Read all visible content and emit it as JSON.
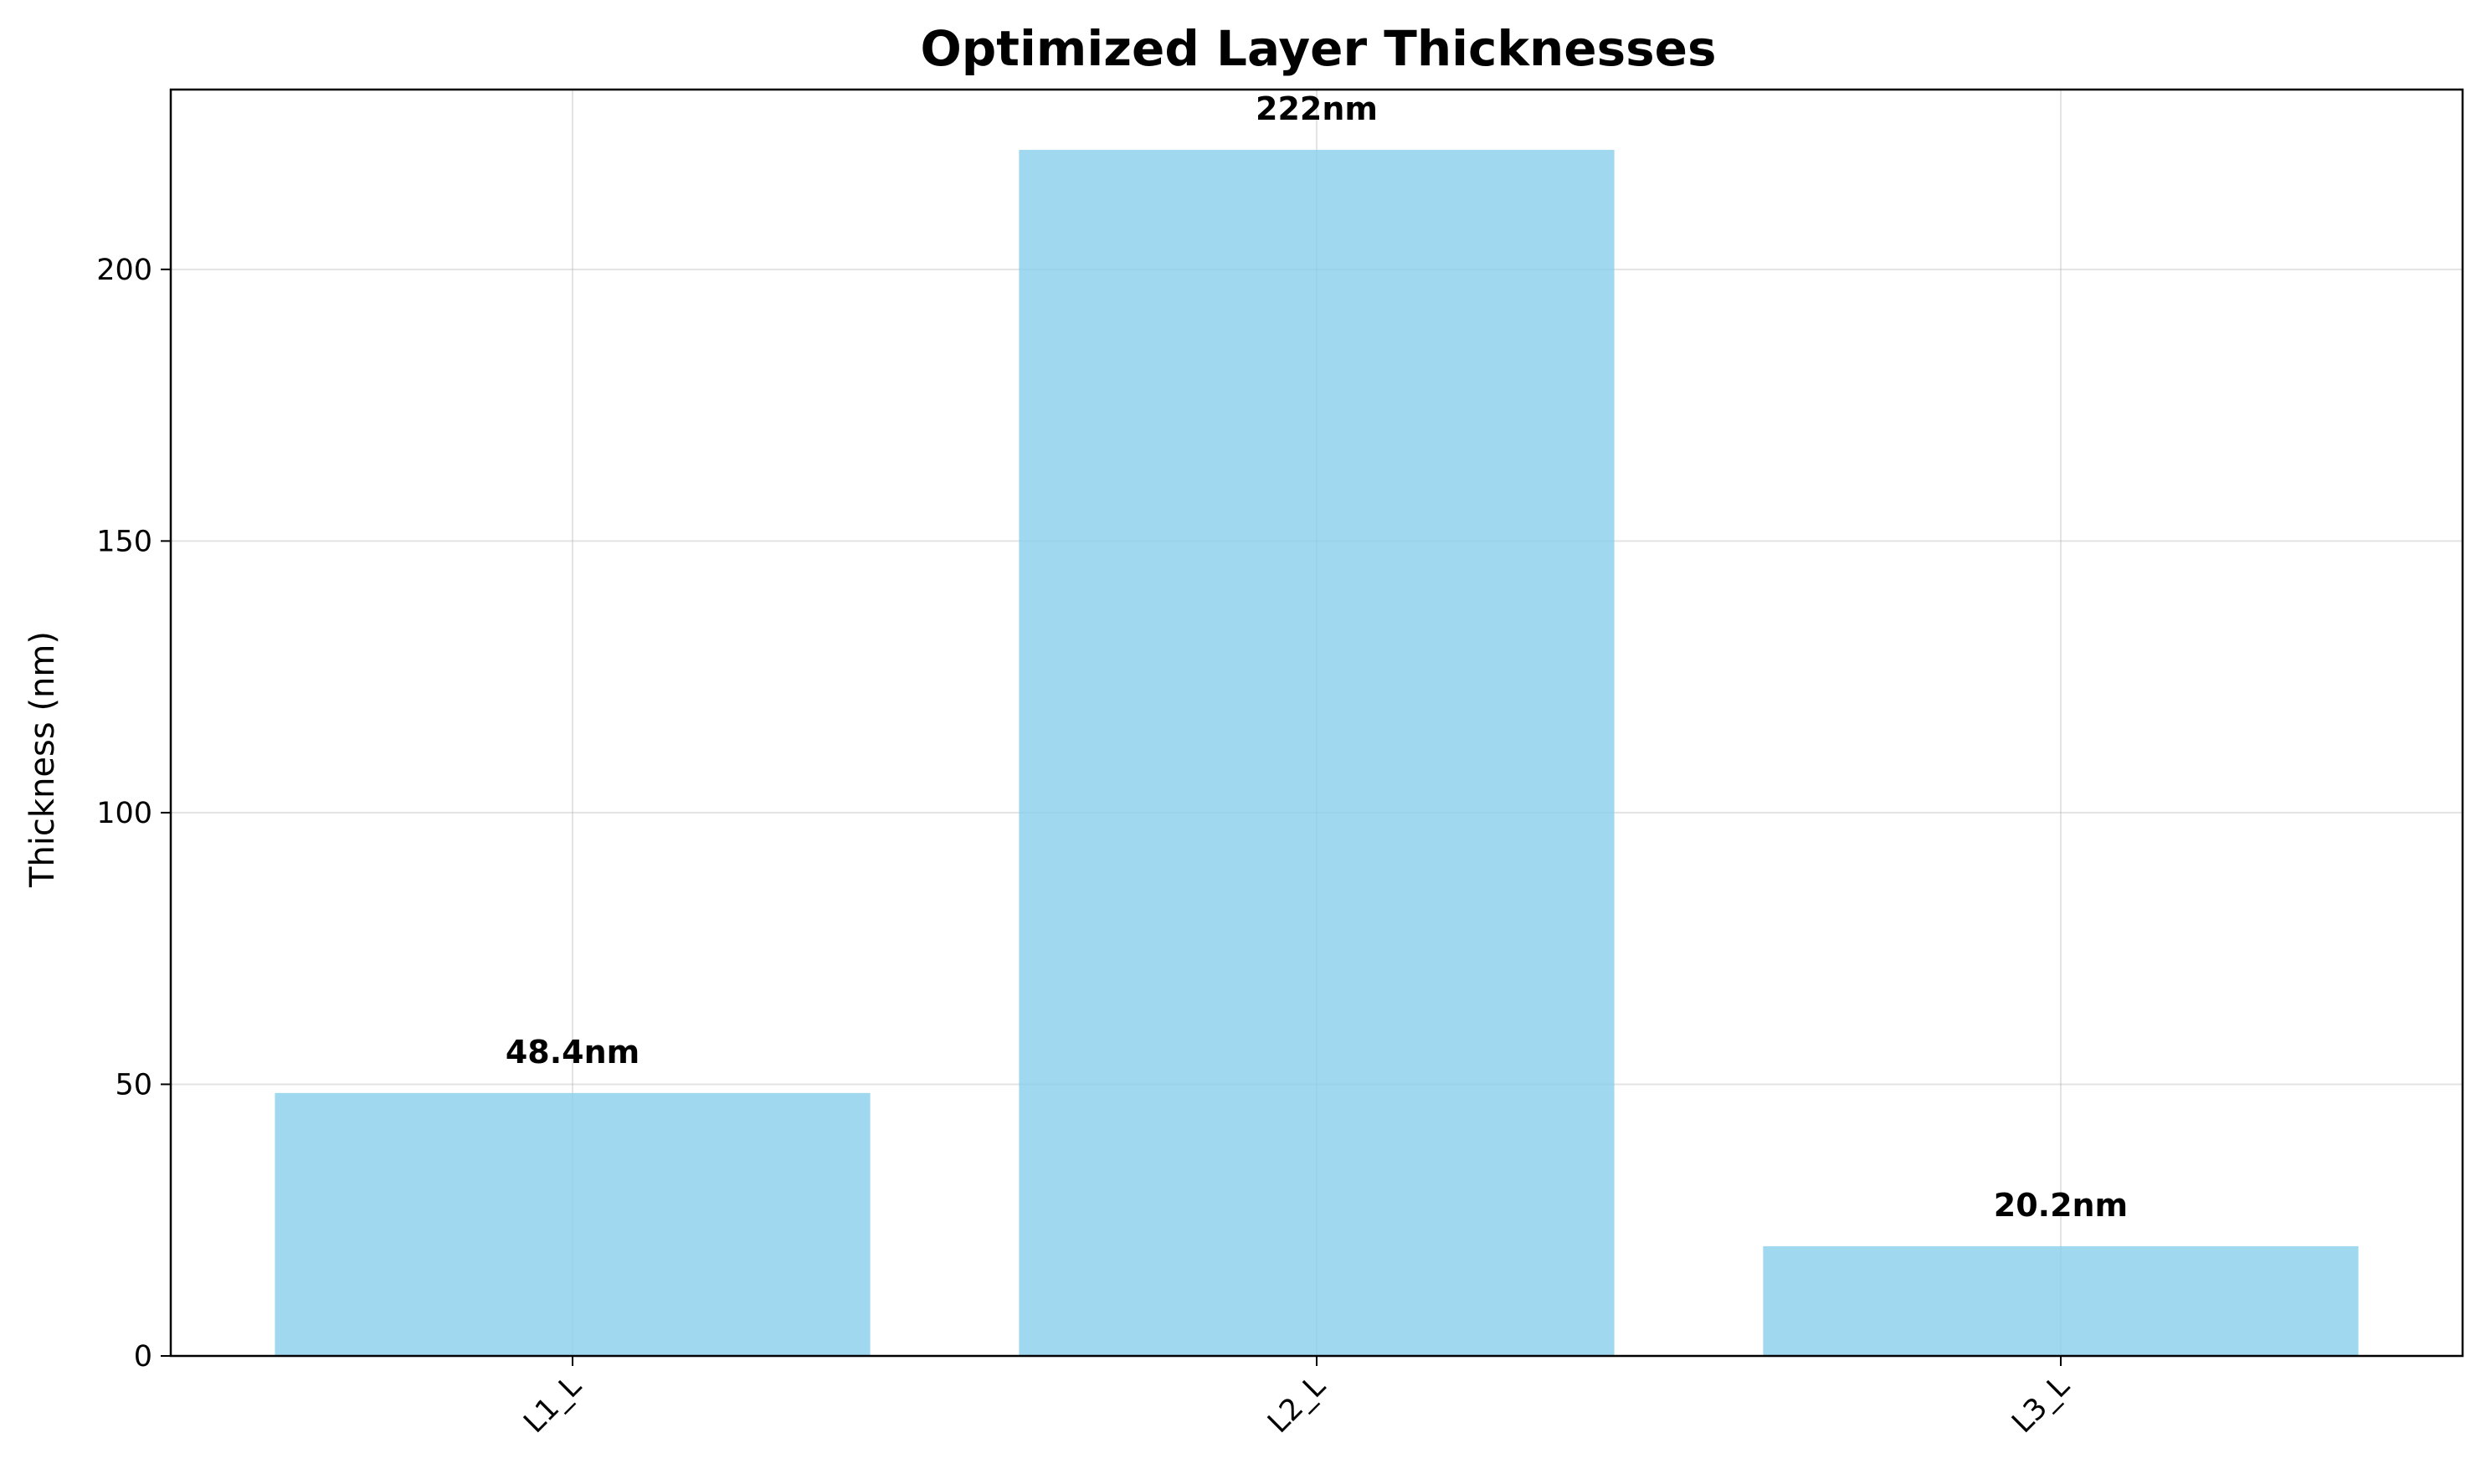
{
  "chart_data": {
    "type": "bar",
    "title": "Optimized Layer Thicknesses",
    "xlabel": "",
    "ylabel": "Thickness (nm)",
    "categories": [
      "L1_L",
      "L2_L",
      "L3_L"
    ],
    "values": [
      48.4,
      222,
      20.2
    ],
    "data_labels": [
      "48.4nm",
      "222nm",
      "20.2nm"
    ],
    "ylim": [
      0,
      233.1
    ],
    "yticks": [
      0,
      50,
      100,
      150,
      200
    ],
    "ytick_labels": [
      "0",
      "50",
      "100",
      "150",
      "200"
    ],
    "grid": true,
    "bar_color": "#87ceeb",
    "xtick_rotation": 45,
    "legend": "none"
  }
}
